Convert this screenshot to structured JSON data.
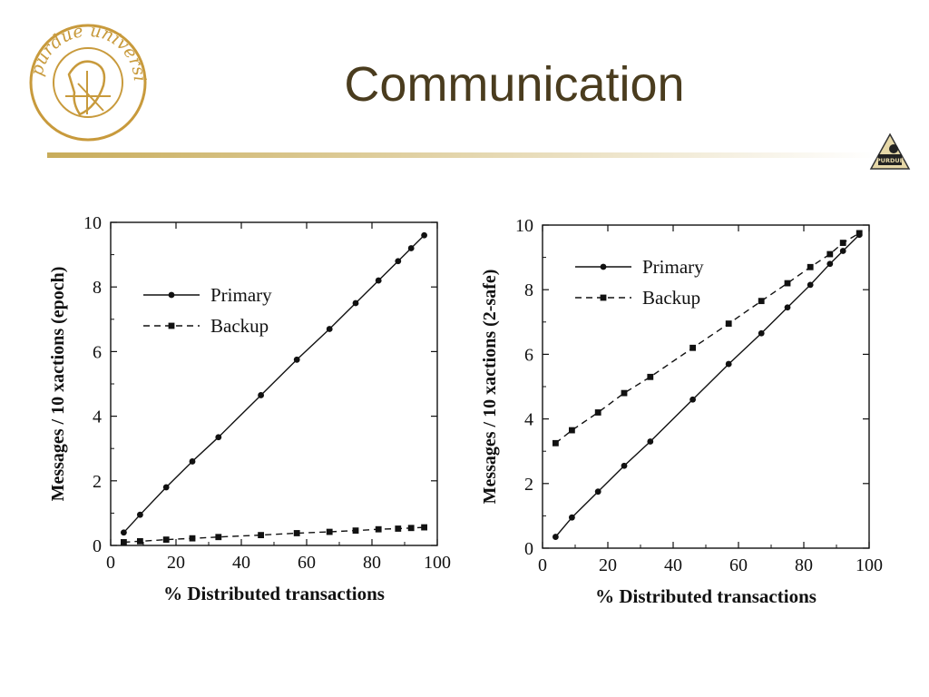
{
  "slide": {
    "title": "Communication",
    "logo_text": "purdue university",
    "small_logo_text": "PURDUE",
    "colors": {
      "title": "#4a3c1e",
      "logo": "#c89a3c",
      "rule_start": "#c8ac5a",
      "rule_end": "#ffffff"
    }
  },
  "chart_data": [
    {
      "type": "line",
      "ylabel": "Messages / 10 xactions (epoch)",
      "xlabel": "%  Distributed transactions",
      "xlim": [
        0,
        100
      ],
      "ylim": [
        0,
        10
      ],
      "x_ticks": [
        "0",
        "20",
        "40",
        "60",
        "80",
        "100"
      ],
      "y_ticks": [
        "0",
        "2",
        "4",
        "6",
        "8",
        "10"
      ],
      "legend_position": "upper-left",
      "series": [
        {
          "name": "Primary",
          "style": "solid",
          "marker": "circle",
          "x": [
            4,
            9,
            17,
            25,
            33,
            46,
            57,
            67,
            75,
            82,
            88,
            92,
            96
          ],
          "y": [
            0.4,
            0.95,
            1.8,
            2.6,
            3.35,
            4.65,
            5.75,
            6.7,
            7.5,
            8.2,
            8.8,
            9.2,
            9.6
          ]
        },
        {
          "name": "Backup",
          "style": "dashed",
          "marker": "square",
          "x": [
            4,
            9,
            17,
            25,
            33,
            46,
            57,
            67,
            75,
            82,
            88,
            92,
            96
          ],
          "y": [
            0.1,
            0.13,
            0.18,
            0.22,
            0.26,
            0.32,
            0.38,
            0.42,
            0.46,
            0.5,
            0.52,
            0.54,
            0.56
          ]
        }
      ]
    },
    {
      "type": "line",
      "ylabel": "Messages / 10 xactions (2-safe)",
      "xlabel": "%  Distributed transactions",
      "xlim": [
        0,
        100
      ],
      "ylim": [
        0,
        10
      ],
      "x_ticks": [
        "0",
        "20",
        "40",
        "60",
        "80",
        "100"
      ],
      "y_ticks": [
        "0",
        "2",
        "4",
        "6",
        "8",
        "10"
      ],
      "legend_position": "upper-left",
      "series": [
        {
          "name": "Primary",
          "style": "solid",
          "marker": "circle",
          "x": [
            4,
            9,
            17,
            25,
            33,
            46,
            57,
            67,
            75,
            82,
            88,
            92,
            97
          ],
          "y": [
            0.35,
            0.95,
            1.75,
            2.55,
            3.3,
            4.6,
            5.7,
            6.65,
            7.45,
            8.15,
            8.8,
            9.2,
            9.7
          ]
        },
        {
          "name": "Backup",
          "style": "dashed",
          "marker": "square",
          "x": [
            4,
            9,
            17,
            25,
            33,
            46,
            57,
            67,
            75,
            82,
            88,
            92,
            97
          ],
          "y": [
            3.25,
            3.65,
            4.2,
            4.8,
            5.3,
            6.2,
            6.95,
            7.65,
            8.2,
            8.7,
            9.1,
            9.45,
            9.75
          ]
        }
      ]
    }
  ]
}
